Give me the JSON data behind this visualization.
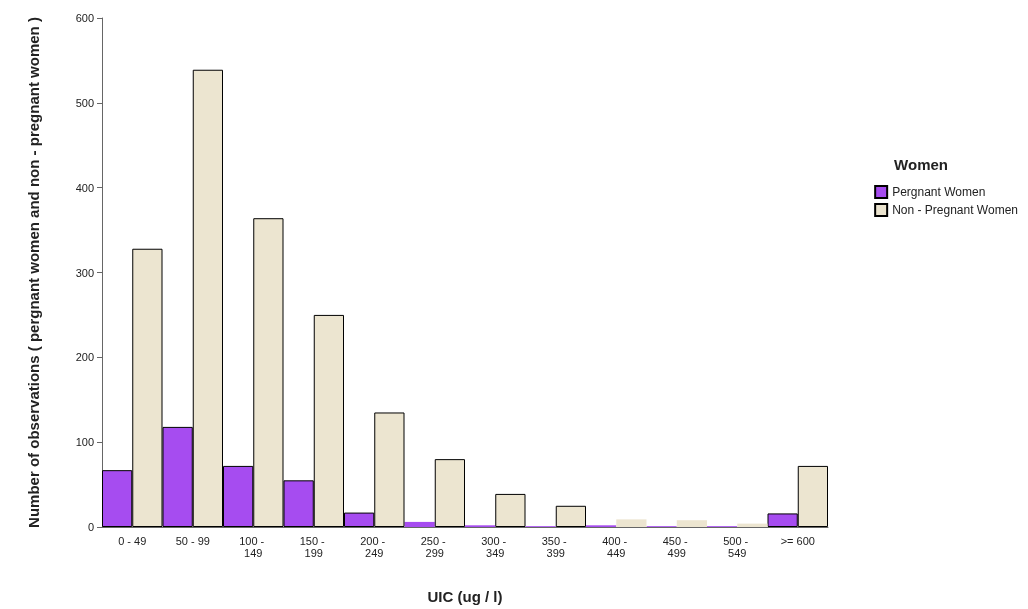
{
  "chart_data": {
    "type": "bar",
    "xlabel": "UIC (ug / l)",
    "ylabel": "Number of observations ( pergnant women and non - pregnant women )",
    "legend_title": "Women",
    "categories": [
      "0 - 49",
      "50 - 99",
      "100 - 149",
      "150 - 199",
      "200 - 249",
      "250 - 299",
      "300 - 349",
      "350 - 399",
      "400 - 449",
      "450 - 499",
      "500 - 549",
      ">= 600"
    ],
    "series": [
      {
        "name": "Pergnant Women",
        "color": "#a64cf0",
        "values": [
          67,
          118,
          72,
          55,
          17,
          6,
          2,
          1,
          2,
          1,
          1,
          16
        ]
      },
      {
        "name": "Non - Pregnant Women",
        "color": "#ece5d0",
        "values": [
          328,
          539,
          364,
          250,
          135,
          80,
          39,
          25,
          9,
          8,
          4,
          72
        ]
      }
    ],
    "ylim": [
      0,
      600
    ],
    "yticks": [
      0,
      100,
      200,
      300,
      400,
      500,
      600
    ],
    "grid": false,
    "legend": "right"
  }
}
